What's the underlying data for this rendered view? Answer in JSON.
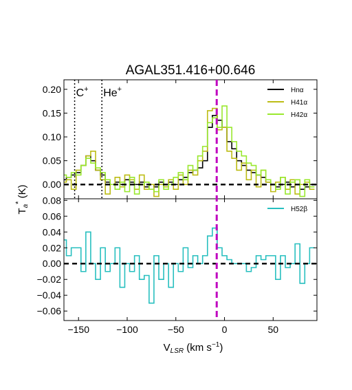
{
  "chart_data": {
    "type": "line",
    "title": "AGAL351.416+00.646",
    "xlabel": "V",
    "xlabel_sub": "LSR",
    "xlabel_unit": " (km s",
    "xlabel_exp": "−1",
    "xlabel_close": ")",
    "ylabel": "T",
    "ylabel_sub": "a",
    "ylabel_sup": "*",
    "ylabel_unit": " (K)",
    "xlim": [
      -165,
      95
    ],
    "x_ticks": [
      -150,
      -100,
      -50,
      0,
      50
    ],
    "x_tick_labels": [
      "−150",
      "−100",
      "−50",
      "0",
      "50"
    ],
    "grid": false,
    "vlines": {
      "velocity": -8,
      "color": "#bf00bf",
      "markers": [
        {
          "x": -154,
          "label": "C",
          "sup": "+"
        },
        {
          "x": -126,
          "label": "He",
          "sup": "+"
        }
      ]
    },
    "panels": [
      {
        "name": "top",
        "ylim": [
          -0.03,
          0.22
        ],
        "y_ticks": [
          0.0,
          0.05,
          0.1,
          0.15,
          0.2
        ],
        "y_tick_labels": [
          "0.00",
          "0.05",
          "0.10",
          "0.15",
          "0.20"
        ],
        "legend_position": "top-right",
        "series": [
          {
            "name": "Hnα",
            "color": "#000000",
            "x": [
              -165,
              -160,
              -155,
              -150,
              -145,
              -140,
              -135,
              -130,
              -125,
              -120,
              -115,
              -110,
              -105,
              -100,
              -95,
              -90,
              -85,
              -80,
              -75,
              -70,
              -65,
              -60,
              -55,
              -50,
              -45,
              -40,
              -35,
              -30,
              -25,
              -20,
              -15,
              -10,
              -5,
              0,
              5,
              10,
              15,
              20,
              25,
              30,
              35,
              40,
              45,
              50,
              55,
              60,
              65,
              70,
              75,
              80,
              85,
              90
            ],
            "y": [
              0.01,
              0.015,
              0.02,
              0.025,
              0.04,
              0.06,
              0.05,
              0.03,
              0.02,
              0.005,
              0.0,
              0.005,
              0.0,
              0.01,
              0.005,
              0.0,
              0.005,
              -0.005,
              0.0,
              -0.005,
              0.005,
              0.0,
              0.005,
              0.0,
              0.01,
              0.015,
              0.025,
              0.03,
              0.035,
              0.05,
              0.12,
              0.145,
              0.135,
              0.12,
              0.09,
              0.075,
              0.05,
              0.04,
              0.03,
              0.025,
              0.02,
              0.015,
              0.005,
              0.0,
              -0.005,
              0.0,
              0.005,
              -0.005,
              0.0,
              -0.01,
              -0.005,
              0.0
            ]
          },
          {
            "name": "H41α",
            "color": "#bcbc14",
            "x": [
              -165,
              -160,
              -155,
              -150,
              -145,
              -140,
              -135,
              -130,
              -125,
              -120,
              -115,
              -110,
              -105,
              -100,
              -95,
              -90,
              -85,
              -80,
              -75,
              -70,
              -65,
              -60,
              -55,
              -50,
              -45,
              -40,
              -35,
              -30,
              -25,
              -20,
              -15,
              -10,
              -5,
              0,
              5,
              10,
              15,
              20,
              25,
              30,
              35,
              40,
              45,
              50,
              55,
              60,
              65,
              70,
              75,
              80,
              85,
              90
            ],
            "y": [
              0.005,
              0.01,
              -0.01,
              0.03,
              0.04,
              0.06,
              0.07,
              0.03,
              0.01,
              -0.02,
              0.0,
              0.015,
              -0.005,
              0.02,
              0.01,
              -0.01,
              0.02,
              -0.01,
              0.0,
              -0.025,
              0.0,
              -0.005,
              0.01,
              -0.01,
              0.02,
              0.0,
              0.03,
              0.02,
              0.05,
              0.07,
              0.155,
              0.16,
              0.115,
              0.12,
              0.07,
              0.055,
              0.03,
              0.045,
              0.01,
              0.03,
              -0.005,
              0.03,
              0.005,
              -0.015,
              0.005,
              0.015,
              -0.01,
              0.01,
              -0.02,
              0.0,
              0.005,
              -0.01
            ]
          },
          {
            "name": "H42α",
            "color": "#99e82d",
            "x": [
              -165,
              -160,
              -155,
              -150,
              -145,
              -140,
              -135,
              -130,
              -125,
              -120,
              -115,
              -110,
              -105,
              -100,
              -95,
              -90,
              -85,
              -80,
              -75,
              -70,
              -65,
              -60,
              -55,
              -50,
              -45,
              -40,
              -35,
              -30,
              -25,
              -20,
              -15,
              -10,
              -5,
              0,
              5,
              10,
              15,
              20,
              25,
              30,
              35,
              40,
              45,
              50,
              55,
              60,
              65,
              70,
              75,
              80,
              85,
              90
            ],
            "y": [
              0.02,
              0.015,
              0.025,
              0.02,
              0.04,
              0.055,
              0.045,
              0.035,
              0.025,
              0.01,
              0.0,
              -0.01,
              0.005,
              -0.015,
              0.015,
              -0.02,
              0.0,
              0.005,
              -0.01,
              -0.015,
              0.01,
              -0.01,
              0.0,
              0.015,
              0.025,
              0.01,
              0.04,
              0.03,
              0.06,
              0.08,
              0.13,
              0.14,
              0.12,
              0.165,
              0.12,
              0.09,
              0.07,
              0.06,
              0.045,
              0.04,
              0.02,
              0.03,
              0.01,
              0.0,
              -0.01,
              0.015,
              -0.02,
              0.005,
              0.01,
              -0.025,
              0.01,
              -0.005
            ]
          }
        ]
      },
      {
        "name": "bottom",
        "ylim": [
          -0.072,
          0.082
        ],
        "y_ticks": [
          -0.06,
          -0.04,
          -0.02,
          0.0,
          0.02,
          0.04,
          0.06,
          0.08
        ],
        "y_tick_labels": [
          "−0.06",
          "−0.04",
          "−0.02",
          "0.00",
          "0.02",
          "0.04",
          "0.06",
          "0.08"
        ],
        "legend_position": "top-right",
        "series": [
          {
            "name": "H52β",
            "color": "#27bfbf",
            "x": [
              -165,
              -160,
              -155,
              -150,
              -145,
              -140,
              -135,
              -130,
              -125,
              -120,
              -115,
              -110,
              -105,
              -100,
              -95,
              -90,
              -85,
              -80,
              -75,
              -70,
              -65,
              -60,
              -55,
              -50,
              -45,
              -40,
              -35,
              -30,
              -25,
              -20,
              -15,
              -10,
              -5,
              0,
              5,
              10,
              15,
              20,
              25,
              30,
              35,
              40,
              45,
              50,
              55,
              60,
              65,
              70,
              75,
              80,
              85,
              90
            ],
            "y": [
              0.03,
              0.01,
              0.02,
              0.02,
              -0.01,
              0.04,
              0.0,
              -0.02,
              0.02,
              -0.01,
              0.0,
              0.02,
              -0.03,
              0.0,
              -0.01,
              0.01,
              -0.02,
              -0.015,
              -0.05,
              0.01,
              -0.02,
              0.0,
              -0.03,
              0.0,
              -0.01,
              0.02,
              -0.005,
              0.01,
              0.0,
              0.01,
              0.035,
              0.045,
              0.02,
              0.01,
              0.005,
              0.0,
              0.0,
              0.0,
              -0.01,
              -0.005,
              0.01,
              0.005,
              0.01,
              0.01,
              -0.02,
              0.01,
              -0.005,
              0.0,
              0.025,
              -0.025,
              0.0,
              0.02
            ]
          }
        ]
      }
    ]
  }
}
